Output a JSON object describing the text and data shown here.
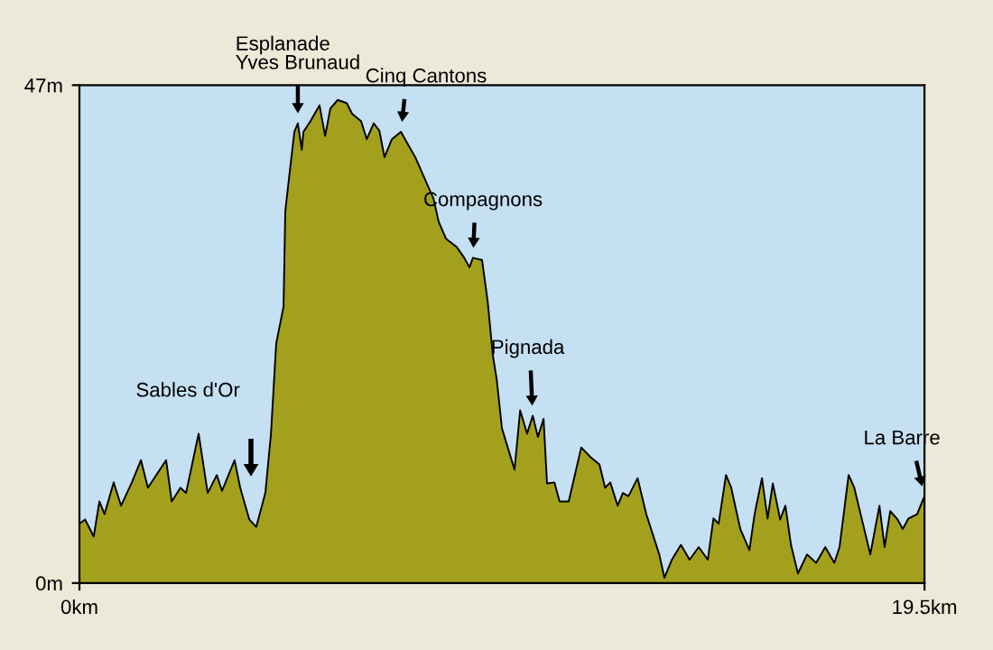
{
  "chart_data": {
    "type": "area",
    "x": [
      0.0,
      0.13,
      0.33,
      0.46,
      0.58,
      0.79,
      0.96,
      1.21,
      1.42,
      1.58,
      2.0,
      2.13,
      2.33,
      2.46,
      2.75,
      2.96,
      3.17,
      3.29,
      3.58,
      3.71,
      3.92,
      4.08,
      4.29,
      4.42,
      4.54,
      4.71,
      4.75,
      4.83,
      4.96,
      5.04,
      5.13,
      5.17,
      5.33,
      5.54,
      5.67,
      5.79,
      5.96,
      6.17,
      6.29,
      6.5,
      6.63,
      6.79,
      6.92,
      7.04,
      7.21,
      7.42,
      7.54,
      7.75,
      8.04,
      8.17,
      8.29,
      8.46,
      8.71,
      8.88,
      9.0,
      9.08,
      9.29,
      9.42,
      9.54,
      9.63,
      9.75,
      10.04,
      10.17,
      10.33,
      10.46,
      10.58,
      10.71,
      10.79,
      10.96,
      11.08,
      11.29,
      11.58,
      11.79,
      12.0,
      12.13,
      12.25,
      12.42,
      12.54,
      12.67,
      12.88,
      13.08,
      13.38,
      13.5,
      13.67,
      13.88,
      14.08,
      14.29,
      14.5,
      14.63,
      14.75,
      14.92,
      15.04,
      15.25,
      15.46,
      15.58,
      15.75,
      15.88,
      16.0,
      16.17,
      16.29,
      16.42,
      16.58,
      16.79,
      17.0,
      17.21,
      17.42,
      17.54,
      17.75,
      17.88,
      18.08,
      18.25,
      18.46,
      18.58,
      18.71,
      18.88,
      19.0,
      19.13,
      19.33,
      19.5
    ],
    "series": [
      {
        "color": "#a3a01e",
        "values": [
          5.6,
          6.0,
          4.4,
          7.7,
          6.5,
          9.5,
          7.3,
          9.5,
          11.6,
          9.0,
          11.6,
          7.7,
          9.0,
          8.5,
          14.1,
          8.5,
          10.2,
          8.7,
          11.6,
          9.0,
          6.0,
          5.3,
          8.5,
          14.1,
          22.6,
          26.1,
          35.1,
          38.0,
          42.6,
          43.4,
          40.9,
          42.6,
          43.6,
          45.1,
          42.2,
          44.8,
          45.6,
          45.3,
          44.3,
          43.6,
          41.9,
          43.4,
          42.7,
          40.2,
          41.9,
          42.6,
          41.7,
          40.2,
          37.5,
          36.3,
          34.1,
          32.5,
          31.7,
          30.7,
          29.8,
          30.7,
          30.5,
          26.6,
          21.5,
          19.2,
          14.6,
          10.7,
          16.3,
          14.1,
          15.8,
          13.8,
          15.5,
          9.4,
          9.5,
          7.7,
          7.7,
          12.8,
          11.9,
          11.2,
          9.0,
          9.5,
          7.3,
          8.5,
          8.2,
          9.9,
          6.5,
          2.7,
          0.5,
          2.2,
          3.6,
          2.2,
          3.4,
          2.2,
          6.1,
          5.6,
          10.2,
          9.0,
          5.1,
          3.1,
          6.5,
          9.9,
          6.1,
          9.4,
          6.0,
          7.3,
          3.6,
          0.9,
          2.7,
          1.9,
          3.4,
          1.9,
          3.4,
          10.2,
          9.0,
          5.6,
          2.7,
          7.3,
          3.4,
          6.8,
          6.0,
          5.1,
          6.1,
          6.5,
          8.2
        ]
      }
    ],
    "xlim": [
      0,
      19.5
    ],
    "ylim": [
      0,
      47
    ],
    "xticks": [
      {
        "value": 0,
        "label": "0km"
      },
      {
        "value": 19.5,
        "label": "19.5km"
      }
    ],
    "yticks": [
      {
        "value": 0,
        "label": "0m"
      },
      {
        "value": 47,
        "label": "47m"
      }
    ],
    "grid": false,
    "legend": false,
    "annotations": [
      {
        "text": "Esplanade\nYves Brunaud",
        "x": 5.04,
        "y": 43.4
      },
      {
        "text": "Cinq Cantons",
        "x": 7.42,
        "y": 42.6
      },
      {
        "text": "Compagnons",
        "x": 9.08,
        "y": 30.7
      },
      "Sables d'Or",
      {
        "text": "Pignada",
        "x": 10.46,
        "y": 15.8
      },
      {
        "text": "La Barre",
        "x": 19.5,
        "y": 8.2
      }
    ]
  }
}
